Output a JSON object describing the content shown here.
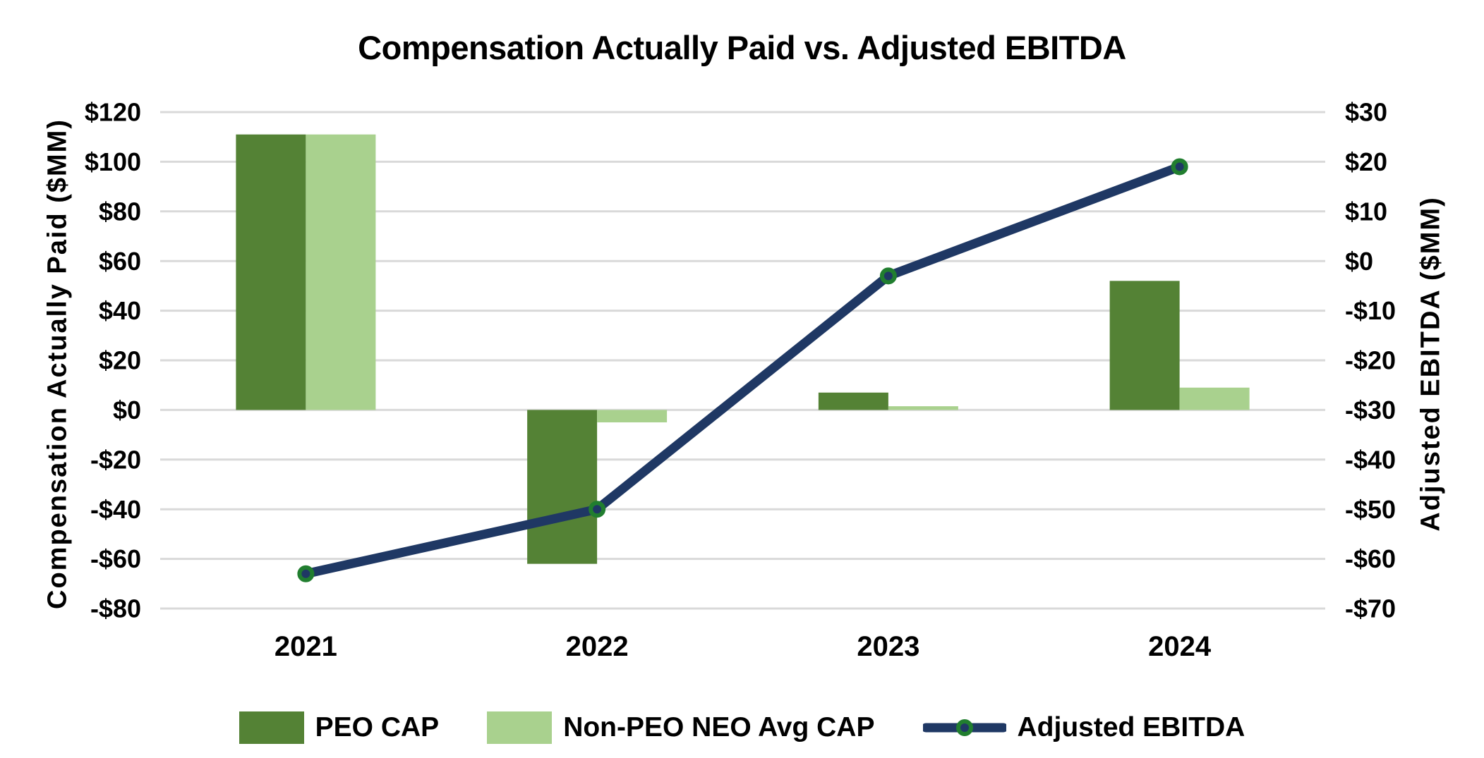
{
  "chart_data": {
    "type": "combo-bar-line",
    "title": "Compensation Actually Paid vs. Adjusted EBITDA",
    "categories": [
      "2021",
      "2022",
      "2023",
      "2024"
    ],
    "bar_series": [
      {
        "name": "PEO CAP",
        "axis": "left",
        "color": "#548235",
        "values": [
          111,
          -62,
          7,
          52
        ]
      },
      {
        "name": "Non-PEO NEO Avg CAP",
        "axis": "left",
        "color": "#A9D18E",
        "values": [
          111,
          -5,
          1.5,
          9
        ]
      }
    ],
    "line_series": [
      {
        "name": "Adjusted EBITDA",
        "axis": "right",
        "color": "#1F3864",
        "marker_ring_color": "#217E2F",
        "values": [
          -63,
          -50,
          -3,
          19
        ]
      }
    ],
    "left_axis": {
      "label": "Compensation Actually Paid ($MM)",
      "ticks": [
        120,
        100,
        80,
        60,
        40,
        20,
        0,
        -20,
        -40,
        -60,
        -80
      ],
      "tick_labels": [
        "$120",
        "$100",
        "$80",
        "$60",
        "$40",
        "$20",
        "$0",
        "-$20",
        "-$40",
        "-$60",
        "-$80"
      ],
      "range": [
        -80,
        120
      ]
    },
    "right_axis": {
      "label": "Adjusted EBITDA ($MM)",
      "ticks": [
        30,
        20,
        10,
        0,
        -10,
        -20,
        -30,
        -40,
        -50,
        -60,
        -70
      ],
      "tick_labels": [
        "$30",
        "$20",
        "$10",
        "$0",
        "-$10",
        "-$20",
        "-$30",
        "-$40",
        "-$50",
        "-$60",
        "-$70"
      ],
      "range": [
        -70,
        30
      ]
    },
    "grid": true,
    "gridline_color": "#D9D9D9",
    "background_color": "#FFFFFF",
    "text_color": "#000000",
    "legend_position": "bottom"
  }
}
